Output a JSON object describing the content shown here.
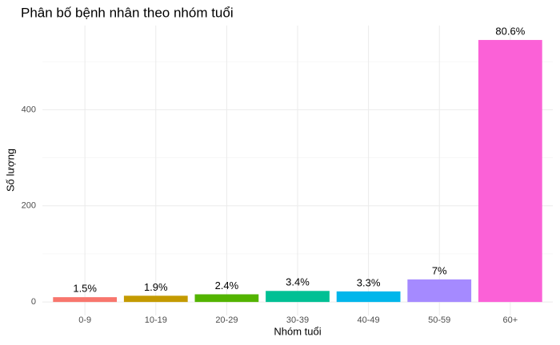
{
  "chart_data": {
    "type": "bar",
    "title": "Phân bố bệnh nhân theo nhóm tuổi",
    "x_label": "Nhóm tuổi",
    "y_label": "Số lượng",
    "categories": [
      "0-9",
      "10-19",
      "20-29",
      "30-39",
      "40-49",
      "50-59",
      "60+"
    ],
    "values": [
      10,
      13,
      16,
      23,
      22,
      47,
      545
    ],
    "percent_labels": [
      "1.5%",
      "1.9%",
      "2.4%",
      "3.4%",
      "3.3%",
      "7%",
      "80.6%"
    ],
    "colors": [
      "#F8766D",
      "#C49A00",
      "#53B400",
      "#00C094",
      "#00B6EB",
      "#A58AFF",
      "#FB61D7"
    ],
    "ylim": [
      -28,
      575
    ],
    "yticks": [
      0,
      200,
      400
    ],
    "minor_yticks": [
      100,
      300,
      500
    ],
    "grid": true
  }
}
